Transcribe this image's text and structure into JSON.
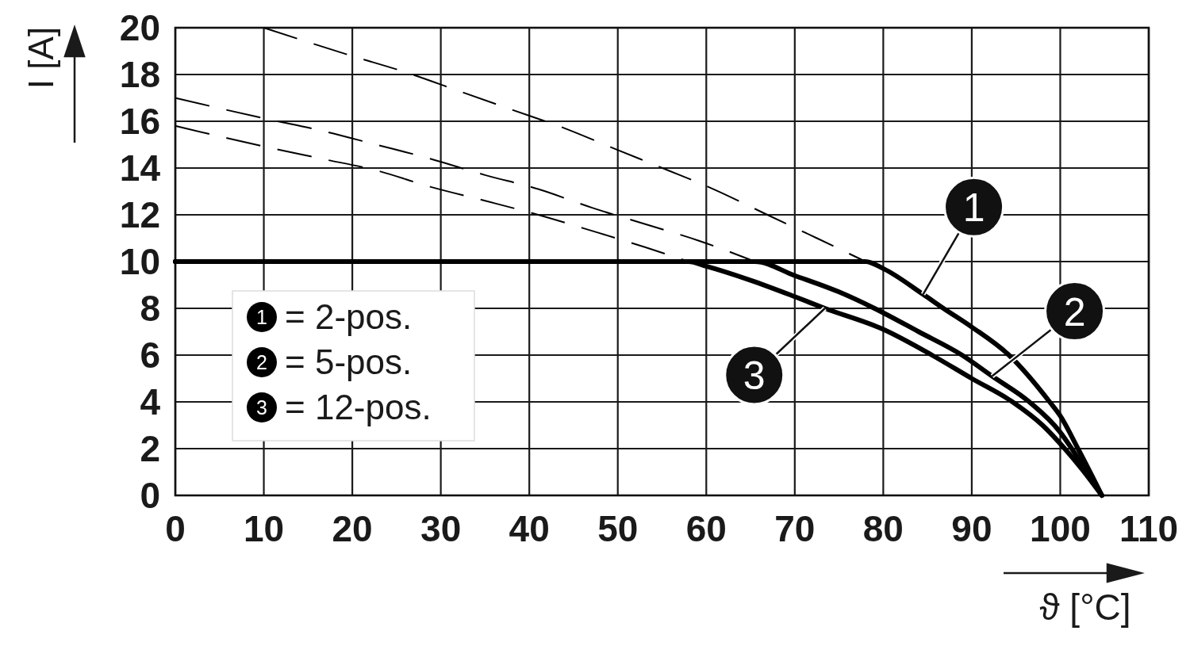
{
  "chart_data": {
    "type": "line",
    "xlabel": "ϑ [°C]",
    "ylabel": "I [A]",
    "xlim": [
      0,
      110
    ],
    "xticks": [
      0,
      10,
      20,
      30,
      40,
      50,
      60,
      70,
      80,
      90,
      100,
      110
    ],
    "ylim": [
      0,
      20
    ],
    "yticks": [
      0,
      2,
      4,
      6,
      8,
      10,
      12,
      14,
      16,
      18,
      20
    ],
    "grid": true,
    "legend": "left",
    "line_style": "solid",
    "series": [
      {
        "name": "= 2-pos.",
        "color": "#000000",
        "x": [
          0,
          78,
          80,
          84.5,
          86.8,
          90,
          94.2,
          98.8,
          100,
          102,
          104.7
        ],
        "values": [
          10,
          10,
          9.7,
          8.6,
          8,
          7.2,
          6,
          4,
          3.4,
          2,
          0
        ]
      },
      {
        "name": "= 5-pos.",
        "color": "#000000",
        "x": [
          0,
          65.5,
          70,
          75,
          79,
          84,
          88.9,
          92.3,
          96.5,
          100,
          101.3,
          103,
          104.7
        ],
        "values": [
          10,
          10,
          9.4,
          8.7,
          8,
          7,
          6,
          5.1,
          4,
          2.7,
          2,
          1,
          0
        ]
      },
      {
        "name": "= 12-pos.",
        "color": "#000000",
        "x": [
          0,
          58,
          60,
          65,
          70,
          73.4,
          80,
          85.5,
          90,
          94.6,
          98,
          100.5,
          102.5,
          104.7
        ],
        "values": [
          10,
          10,
          9.8,
          9.2,
          8.5,
          8,
          7.1,
          6,
          5,
          4,
          3,
          2,
          1.1,
          0
        ]
      },
      {
        "color": "#000000",
        "line_style": "dashed",
        "x": [
          10,
          19.9,
          26,
          32,
          38,
          44,
          49.8,
          55.7,
          60.8,
          66.9,
          72.5,
          78
        ],
        "values": [
          20,
          18.8,
          18.1,
          17.3,
          16.5,
          15.7,
          14.8,
          13.9,
          13.1,
          12,
          11,
          10
        ]
      },
      {
        "color": "#000000",
        "line_style": "dashed",
        "x": [
          0,
          10.3,
          16.5,
          22.7,
          28.8,
          35,
          41,
          47.1,
          53.1,
          59.1,
          65.5
        ],
        "values": [
          17,
          16.1,
          15.6,
          15,
          14.4,
          13.7,
          13.1,
          12.3,
          11.6,
          10.9,
          10
        ]
      },
      {
        "color": "#000000",
        "line_style": "dashed",
        "x": [
          0,
          10.3,
          16.5,
          22.7,
          28.8,
          35,
          41,
          47.2,
          53.2,
          58
        ],
        "values": [
          15.8,
          14.9,
          14.4,
          13.9,
          13.2,
          12.6,
          12,
          11.3,
          10.6,
          10
        ]
      }
    ],
    "annotations": [
      {
        "text": "1",
        "x": 84.5,
        "y": 8.6
      },
      {
        "text": "2",
        "x": 92.3,
        "y": 5.1
      },
      {
        "text": "3",
        "x": 73.4,
        "y": 8
      }
    ]
  }
}
